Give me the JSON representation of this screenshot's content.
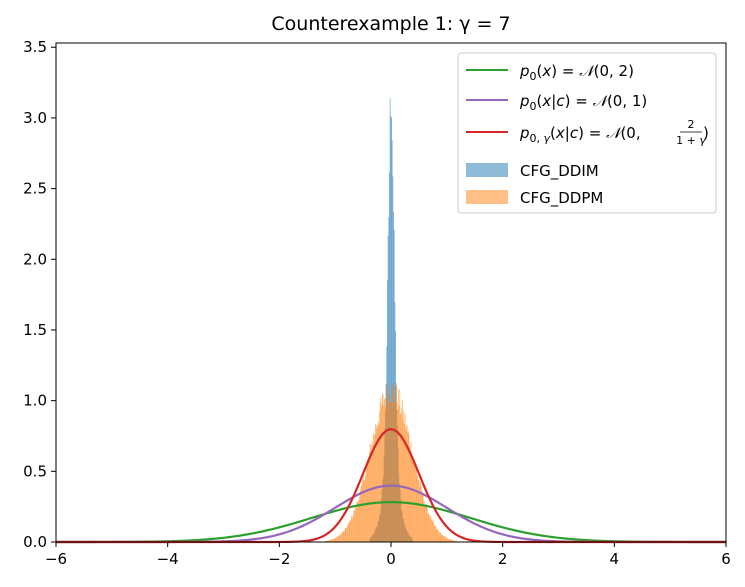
{
  "chart_data": {
    "type": "line",
    "title": "Counterexample 1: γ = 7",
    "xlabel": "",
    "ylabel": "",
    "xlim": [
      -6,
      6
    ],
    "ylim": [
      0,
      3.53
    ],
    "xticks": [
      -6,
      -4,
      -2,
      0,
      2,
      4,
      6
    ],
    "xtick_labels": [
      "−6",
      "−4",
      "−2",
      "0",
      "2",
      "4",
      "6"
    ],
    "yticks": [
      0.0,
      0.5,
      1.0,
      1.5,
      2.0,
      2.5,
      3.0,
      3.5
    ],
    "ytick_labels": [
      "0.0",
      "0.5",
      "1.0",
      "1.5",
      "2.0",
      "2.5",
      "3.0",
      "3.5"
    ],
    "grid": false,
    "legend_position": "top-right",
    "series": [
      {
        "kind": "curve",
        "label": "p₀(x) = 𝒩(0, 2)",
        "mean": 0,
        "variance": 2,
        "color": "#2ca02c"
      },
      {
        "kind": "curve",
        "label": "p₀(x|c) = 𝒩(0, 1)",
        "mean": 0,
        "variance": 1,
        "color": "#9467bd"
      },
      {
        "kind": "curve",
        "label": "p₀,ᵧ(x|c) = 𝒩(0, 2/(1+γ))",
        "mean": 0,
        "variance": 0.25,
        "color": "#d62728"
      },
      {
        "kind": "hist",
        "label": "CFG_DDIM",
        "peak_density": 3.35,
        "std": 0.12,
        "color": "#1f77b4",
        "opacity": 0.5
      },
      {
        "kind": "hist",
        "label": "CFG_DDPM",
        "peak_density": 1.07,
        "std": 0.37,
        "color": "#ff7f0e",
        "opacity": 0.5
      }
    ]
  }
}
